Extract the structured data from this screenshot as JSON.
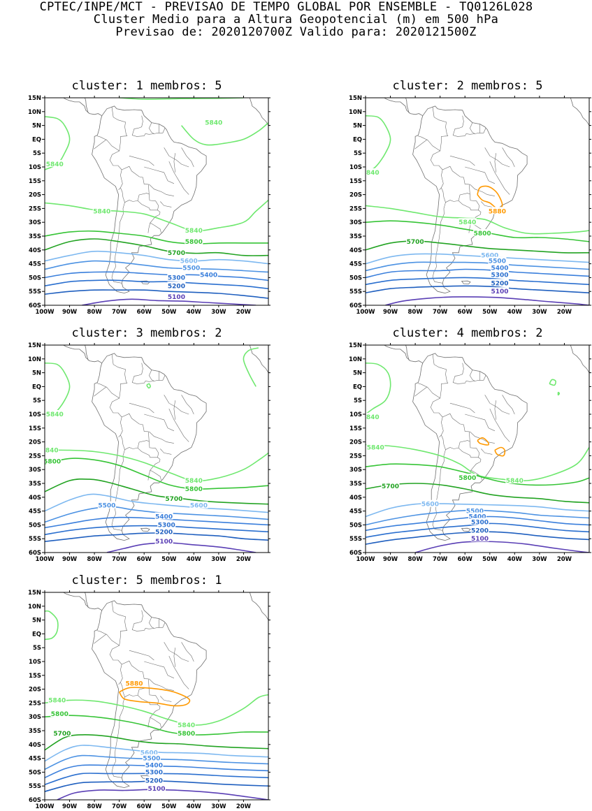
{
  "header": {
    "line1": "CPTEC/INPE/MCT - PREVISAO DE TEMPO GLOBAL POR ENSEMBLE - TQ0126L028",
    "line2": "Cluster Medio para a Altura Geopotencial (m) em 500 hPa",
    "line3": "Previsao de: 2020120700Z    Valido para: 2020121500Z"
  },
  "axes": {
    "lat_ticks": [
      "15N",
      "10N",
      "5N",
      "EQ",
      "5S",
      "10S",
      "15S",
      "20S",
      "25S",
      "30S",
      "35S",
      "40S",
      "45S",
      "50S",
      "55S",
      "60S"
    ],
    "lon_ticks": [
      "100W",
      "90W",
      "80W",
      "70W",
      "60W",
      "50W",
      "40W",
      "30W",
      "20W"
    ]
  },
  "colors": {
    "c5100": "#5a3fb5",
    "c5200": "#1f5fbf",
    "c5300": "#2a6fcf",
    "c5400": "#3a7fdc",
    "c5500": "#4c92e3",
    "c5600": "#7db8f0",
    "c5700": "#22a322",
    "c5800": "#36c436",
    "c5840": "#6fe86f",
    "c5880": "#ff9900",
    "land": "#6e6e6e"
  },
  "clusters": [
    {
      "title": "cluster: 1   membros: 5",
      "labels": [
        {
          "text": "5840",
          "lon": -32,
          "lat": 6,
          "c": "c5840"
        },
        {
          "text": "5840",
          "lon": -96,
          "lat": -9,
          "c": "c5840"
        },
        {
          "text": "5840",
          "lon": -77,
          "lat": -26,
          "c": "c5840"
        },
        {
          "text": "5840",
          "lon": -40,
          "lat": -33,
          "c": "c5840"
        },
        {
          "text": "5800",
          "lon": -40,
          "lat": -37,
          "c": "c5800"
        },
        {
          "text": "5700",
          "lon": -47,
          "lat": -41,
          "c": "c5700"
        },
        {
          "text": "5600",
          "lon": -42,
          "lat": -44,
          "c": "c5600"
        },
        {
          "text": "5500",
          "lon": -41,
          "lat": -46.5,
          "c": "c5500"
        },
        {
          "text": "5400",
          "lon": -34,
          "lat": -49,
          "c": "c5400"
        },
        {
          "text": "5300",
          "lon": -47,
          "lat": -50,
          "c": "c5300"
        },
        {
          "text": "5200",
          "lon": -47,
          "lat": -53,
          "c": "c5200"
        },
        {
          "text": "5100",
          "lon": -47,
          "lat": -57,
          "c": "c5100"
        }
      ]
    },
    {
      "title": "cluster: 2   membros: 5",
      "labels": [
        {
          "text": "5840",
          "lon": -98,
          "lat": -12,
          "c": "c5840"
        },
        {
          "text": "5880",
          "lon": -47,
          "lat": -26,
          "c": "c5880"
        },
        {
          "text": "5840",
          "lon": -59,
          "lat": -30,
          "c": "c5840"
        },
        {
          "text": "5800",
          "lon": -53,
          "lat": -34,
          "c": "c5800"
        },
        {
          "text": "5700",
          "lon": -80,
          "lat": -37,
          "c": "c5700"
        },
        {
          "text": "5600",
          "lon": -50,
          "lat": -42,
          "c": "c5600"
        },
        {
          "text": "5500",
          "lon": -47,
          "lat": -44,
          "c": "c5500"
        },
        {
          "text": "5400",
          "lon": -46,
          "lat": -46.5,
          "c": "c5400"
        },
        {
          "text": "5300",
          "lon": -46,
          "lat": -49,
          "c": "c5300"
        },
        {
          "text": "5200",
          "lon": -46,
          "lat": -52,
          "c": "c5200"
        },
        {
          "text": "5100",
          "lon": -46,
          "lat": -55,
          "c": "c5100"
        }
      ]
    },
    {
      "title": "cluster: 3   membros: 2",
      "labels": [
        {
          "text": "5840",
          "lon": -96,
          "lat": -10,
          "c": "c5840"
        },
        {
          "text": "5840",
          "lon": -98,
          "lat": -23,
          "c": "c5840"
        },
        {
          "text": "5800",
          "lon": -97,
          "lat": -27,
          "c": "c5800"
        },
        {
          "text": "5840",
          "lon": -40,
          "lat": -34,
          "c": "c5840"
        },
        {
          "text": "5800",
          "lon": -40,
          "lat": -37,
          "c": "c5800"
        },
        {
          "text": "5700",
          "lon": -48,
          "lat": -40.5,
          "c": "c5700"
        },
        {
          "text": "5600",
          "lon": -38,
          "lat": -43,
          "c": "c5600"
        },
        {
          "text": "5500",
          "lon": -75,
          "lat": -43,
          "c": "c5500"
        },
        {
          "text": "5400",
          "lon": -52,
          "lat": -47,
          "c": "c5400"
        },
        {
          "text": "5300",
          "lon": -51,
          "lat": -50,
          "c": "c5300"
        },
        {
          "text": "5200",
          "lon": -52,
          "lat": -52.5,
          "c": "c5200"
        },
        {
          "text": "5100",
          "lon": -52,
          "lat": -56,
          "c": "c5100"
        }
      ]
    },
    {
      "title": "cluster: 4   membros: 2",
      "labels": [
        {
          "text": "5840",
          "lon": -98,
          "lat": -11,
          "c": "c5840"
        },
        {
          "text": "5840",
          "lon": -96,
          "lat": -22,
          "c": "c5840"
        },
        {
          "text": "5840",
          "lon": -40,
          "lat": -34,
          "c": "c5840"
        },
        {
          "text": "5800",
          "lon": -59,
          "lat": -33,
          "c": "c5800"
        },
        {
          "text": "5700",
          "lon": -90,
          "lat": -36,
          "c": "c5700"
        },
        {
          "text": "5600",
          "lon": -74,
          "lat": -42.5,
          "c": "c5600"
        },
        {
          "text": "5500",
          "lon": -56,
          "lat": -45,
          "c": "c5500"
        },
        {
          "text": "5400",
          "lon": -55,
          "lat": -47,
          "c": "c5400"
        },
        {
          "text": "5300",
          "lon": -54,
          "lat": -49,
          "c": "c5300"
        },
        {
          "text": "5200",
          "lon": -54,
          "lat": -52,
          "c": "c5200"
        },
        {
          "text": "5100",
          "lon": -54,
          "lat": -55,
          "c": "c5100"
        }
      ]
    },
    {
      "title": "cluster: 5   membros: 1",
      "labels": [
        {
          "text": "5880",
          "lon": -64,
          "lat": -18,
          "c": "c5880"
        },
        {
          "text": "5840",
          "lon": -95,
          "lat": -24,
          "c": "c5840"
        },
        {
          "text": "5800",
          "lon": -94,
          "lat": -29,
          "c": "c5800"
        },
        {
          "text": "5700",
          "lon": -93,
          "lat": -36,
          "c": "c5700"
        },
        {
          "text": "5840",
          "lon": -43,
          "lat": -33,
          "c": "c5840"
        },
        {
          "text": "5800",
          "lon": -43,
          "lat": -36,
          "c": "c5800"
        },
        {
          "text": "5600",
          "lon": -58,
          "lat": -43,
          "c": "c5600"
        },
        {
          "text": "5500",
          "lon": -57,
          "lat": -45,
          "c": "c5500"
        },
        {
          "text": "5400",
          "lon": -56,
          "lat": -47.5,
          "c": "c5400"
        },
        {
          "text": "5300",
          "lon": -56,
          "lat": -50,
          "c": "c5300"
        },
        {
          "text": "5200",
          "lon": -56,
          "lat": -53,
          "c": "c5200"
        },
        {
          "text": "5100",
          "lon": -55,
          "lat": -56,
          "c": "c5100"
        }
      ]
    }
  ]
}
